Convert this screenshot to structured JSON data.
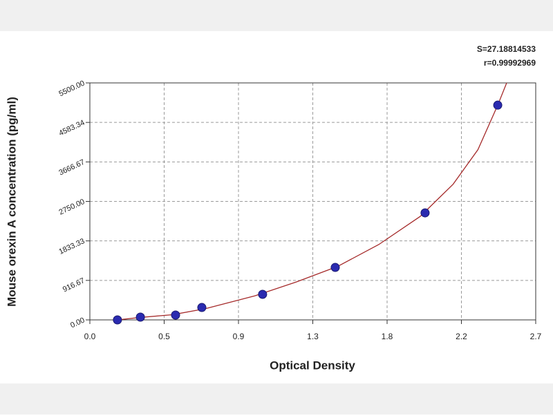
{
  "chart_data": {
    "type": "scatter",
    "annotations": [
      "S=27.18814533",
      "r=0.99992969"
    ],
    "x_label": "Optical Density",
    "y_label": "Mouse orexin A concentration (pg/ml)",
    "xlim": [
      0,
      2.7
    ],
    "xticks": [
      {
        "value": 0,
        "label": "0.0"
      },
      {
        "value": 0.45,
        "label": "0.5"
      },
      0.9,
      {
        "value": 1.35,
        "label": "1.3"
      },
      1.8,
      {
        "value": 2.25,
        "label": "2.2"
      },
      2.7
    ],
    "ylim": [
      0,
      5500
    ],
    "yticks": [
      {
        "value": 0,
        "label": "0.00"
      },
      {
        "value": 916.67,
        "label": "916.67"
      },
      {
        "value": 1833.33,
        "label": "1833.33"
      },
      {
        "value": 2750,
        "label": "2750.00"
      },
      {
        "value": 3666.67,
        "label": "3666.67"
      },
      {
        "value": 4583.34,
        "label": "4583.34"
      },
      {
        "value": 5500,
        "label": "5500.00"
      }
    ],
    "grid": true,
    "points": {
      "color": "#2a2ab0",
      "x": [
        0.167,
        0.306,
        0.519,
        0.678,
        1.046,
        1.486,
        2.03,
        2.47
      ],
      "y": [
        0,
        64,
        112,
        288,
        593,
        1218,
        2484,
        4984
      ]
    },
    "curve": {
      "color": "#a52a2a",
      "x": [
        0.167,
        0.3,
        0.5,
        0.7,
        1.0,
        1.25,
        1.5,
        1.75,
        2.0,
        2.2,
        2.35,
        2.47,
        2.524
      ],
      "y": [
        0,
        55,
        120,
        260,
        560,
        880,
        1240,
        1750,
        2400,
        3150,
        3950,
        4984,
        5500
      ]
    }
  }
}
